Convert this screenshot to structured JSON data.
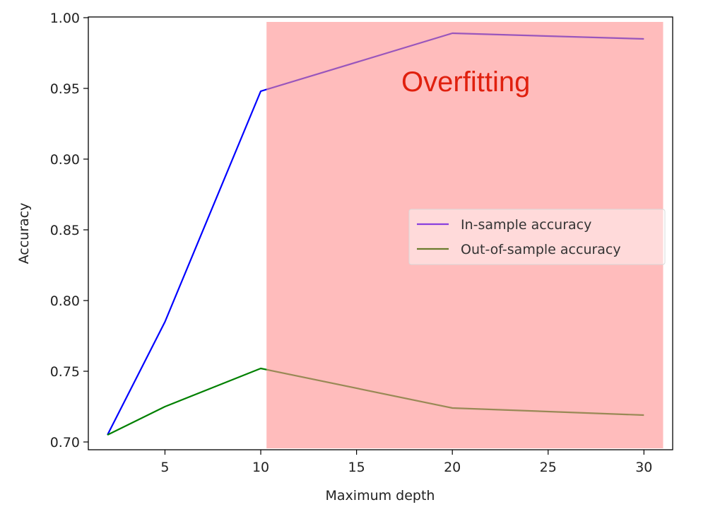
{
  "chart_data": {
    "type": "line",
    "title": "",
    "xlabel": "Maximum depth",
    "ylabel": "Accuracy",
    "xlim": [
      1,
      31.5
    ],
    "ylim": [
      0.6945,
      1.0005
    ],
    "x_ticks": [
      5,
      10,
      15,
      20,
      25,
      30
    ],
    "y_ticks": [
      0.7,
      0.75,
      0.8,
      0.85,
      0.9,
      0.95,
      1.0
    ],
    "x_tick_labels": [
      "5",
      "10",
      "15",
      "20",
      "25",
      "30"
    ],
    "y_tick_labels": [
      "0.70",
      "0.75",
      "0.80",
      "0.85",
      "0.90",
      "0.95",
      "1.00"
    ],
    "grid": false,
    "x": [
      2,
      5,
      10,
      20,
      30
    ],
    "series": [
      {
        "name": "In-sample accuracy",
        "values": [
          0.705,
          0.785,
          0.948,
          0.989,
          0.985
        ],
        "color": "#0000ff",
        "legend_color": "#8a3fdd"
      },
      {
        "name": "Out-of-sample accuracy",
        "values": [
          0.705,
          0.725,
          0.752,
          0.724,
          0.719
        ],
        "color": "#008000",
        "legend_color": "#6b7b2e"
      }
    ],
    "shaded_region": {
      "x_range": [
        10.3,
        31
      ],
      "y_range": [
        0.6955,
        0.997
      ],
      "color": "#ff8f8f",
      "opacity": 0.6
    },
    "annotation": {
      "text": "Overfitting",
      "x": 20.7,
      "y": 0.955,
      "color": "#e0200e"
    },
    "legend_position": "center-right"
  }
}
